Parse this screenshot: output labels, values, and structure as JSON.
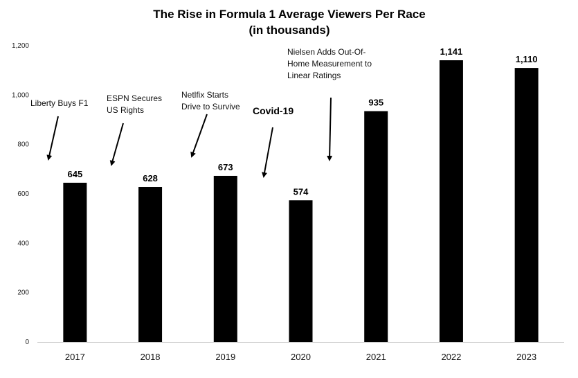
{
  "chart_data": {
    "type": "bar",
    "title": "The Rise in Formula 1 Average Viewers Per Race",
    "subtitle": "(in thousands)",
    "categories": [
      "2017",
      "2018",
      "2019",
      "2020",
      "2021",
      "2022",
      "2023"
    ],
    "values": [
      645,
      628,
      673,
      574,
      935,
      1141,
      1110
    ],
    "value_labels": [
      "645",
      "628",
      "673",
      "574",
      "935",
      "1,141",
      "1,110"
    ],
    "ylim": [
      0,
      1200
    ],
    "yticks": [
      "0",
      "200",
      "400",
      "600",
      "800",
      "1,000",
      "1,200"
    ],
    "ytick_values": [
      0,
      200,
      400,
      600,
      800,
      1000,
      1200
    ],
    "bar_color": "#000000",
    "grid": false,
    "annotations": [
      {
        "category": "2017",
        "lines": [
          "Liberty Buys F1"
        ],
        "bold": false
      },
      {
        "category": "2018",
        "lines": [
          "ESPN Secures",
          "US Rights"
        ],
        "bold": false
      },
      {
        "category": "2019",
        "lines": [
          "Netlfix Starts",
          "Drive to Survive"
        ],
        "bold": false
      },
      {
        "category": "2020",
        "lines": [
          "Covid-19"
        ],
        "bold": true
      },
      {
        "category": "2021",
        "lines": [
          "Nielsen Adds Out-Of-",
          "Home Measurement to",
          "Linear Ratings"
        ],
        "bold": false
      }
    ]
  }
}
